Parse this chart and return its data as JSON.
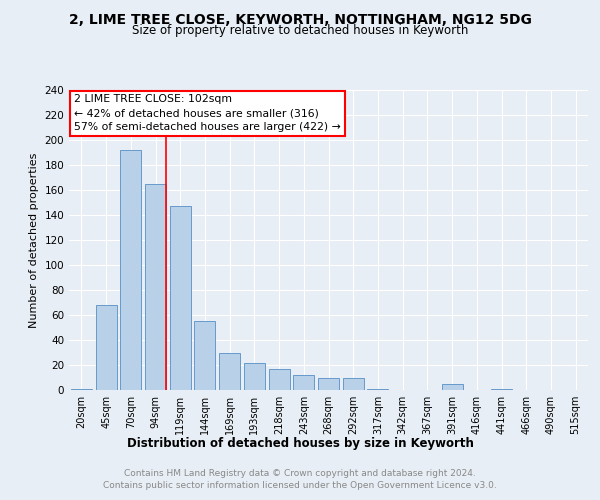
{
  "title1": "2, LIME TREE CLOSE, KEYWORTH, NOTTINGHAM, NG12 5DG",
  "title2": "Size of property relative to detached houses in Keyworth",
  "xlabel": "Distribution of detached houses by size in Keyworth",
  "ylabel": "Number of detached properties",
  "bar_color": "#b8d0e8",
  "bar_edge_color": "#6699cc",
  "categories": [
    "20sqm",
    "45sqm",
    "70sqm",
    "94sqm",
    "119sqm",
    "144sqm",
    "169sqm",
    "193sqm",
    "218sqm",
    "243sqm",
    "268sqm",
    "292sqm",
    "317sqm",
    "342sqm",
    "367sqm",
    "391sqm",
    "416sqm",
    "441sqm",
    "466sqm",
    "490sqm",
    "515sqm"
  ],
  "values": [
    1,
    68,
    192,
    165,
    147,
    55,
    30,
    22,
    17,
    12,
    10,
    10,
    1,
    0,
    0,
    5,
    0,
    1,
    0,
    0,
    0
  ],
  "property_label": "2 LIME TREE CLOSE: 102sqm",
  "annotation_line1": "← 42% of detached houses are smaller (316)",
  "annotation_line2": "57% of semi-detached houses are larger (422) →",
  "vline_x": 3.42,
  "ylim": [
    0,
    240
  ],
  "yticks": [
    0,
    20,
    40,
    60,
    80,
    100,
    120,
    140,
    160,
    180,
    200,
    220,
    240
  ],
  "footer_line1": "Contains HM Land Registry data © Crown copyright and database right 2024.",
  "footer_line2": "Contains public sector information licensed under the Open Government Licence v3.0.",
  "background_color": "#e8eef5",
  "plot_bg_color": "#e8eef5"
}
